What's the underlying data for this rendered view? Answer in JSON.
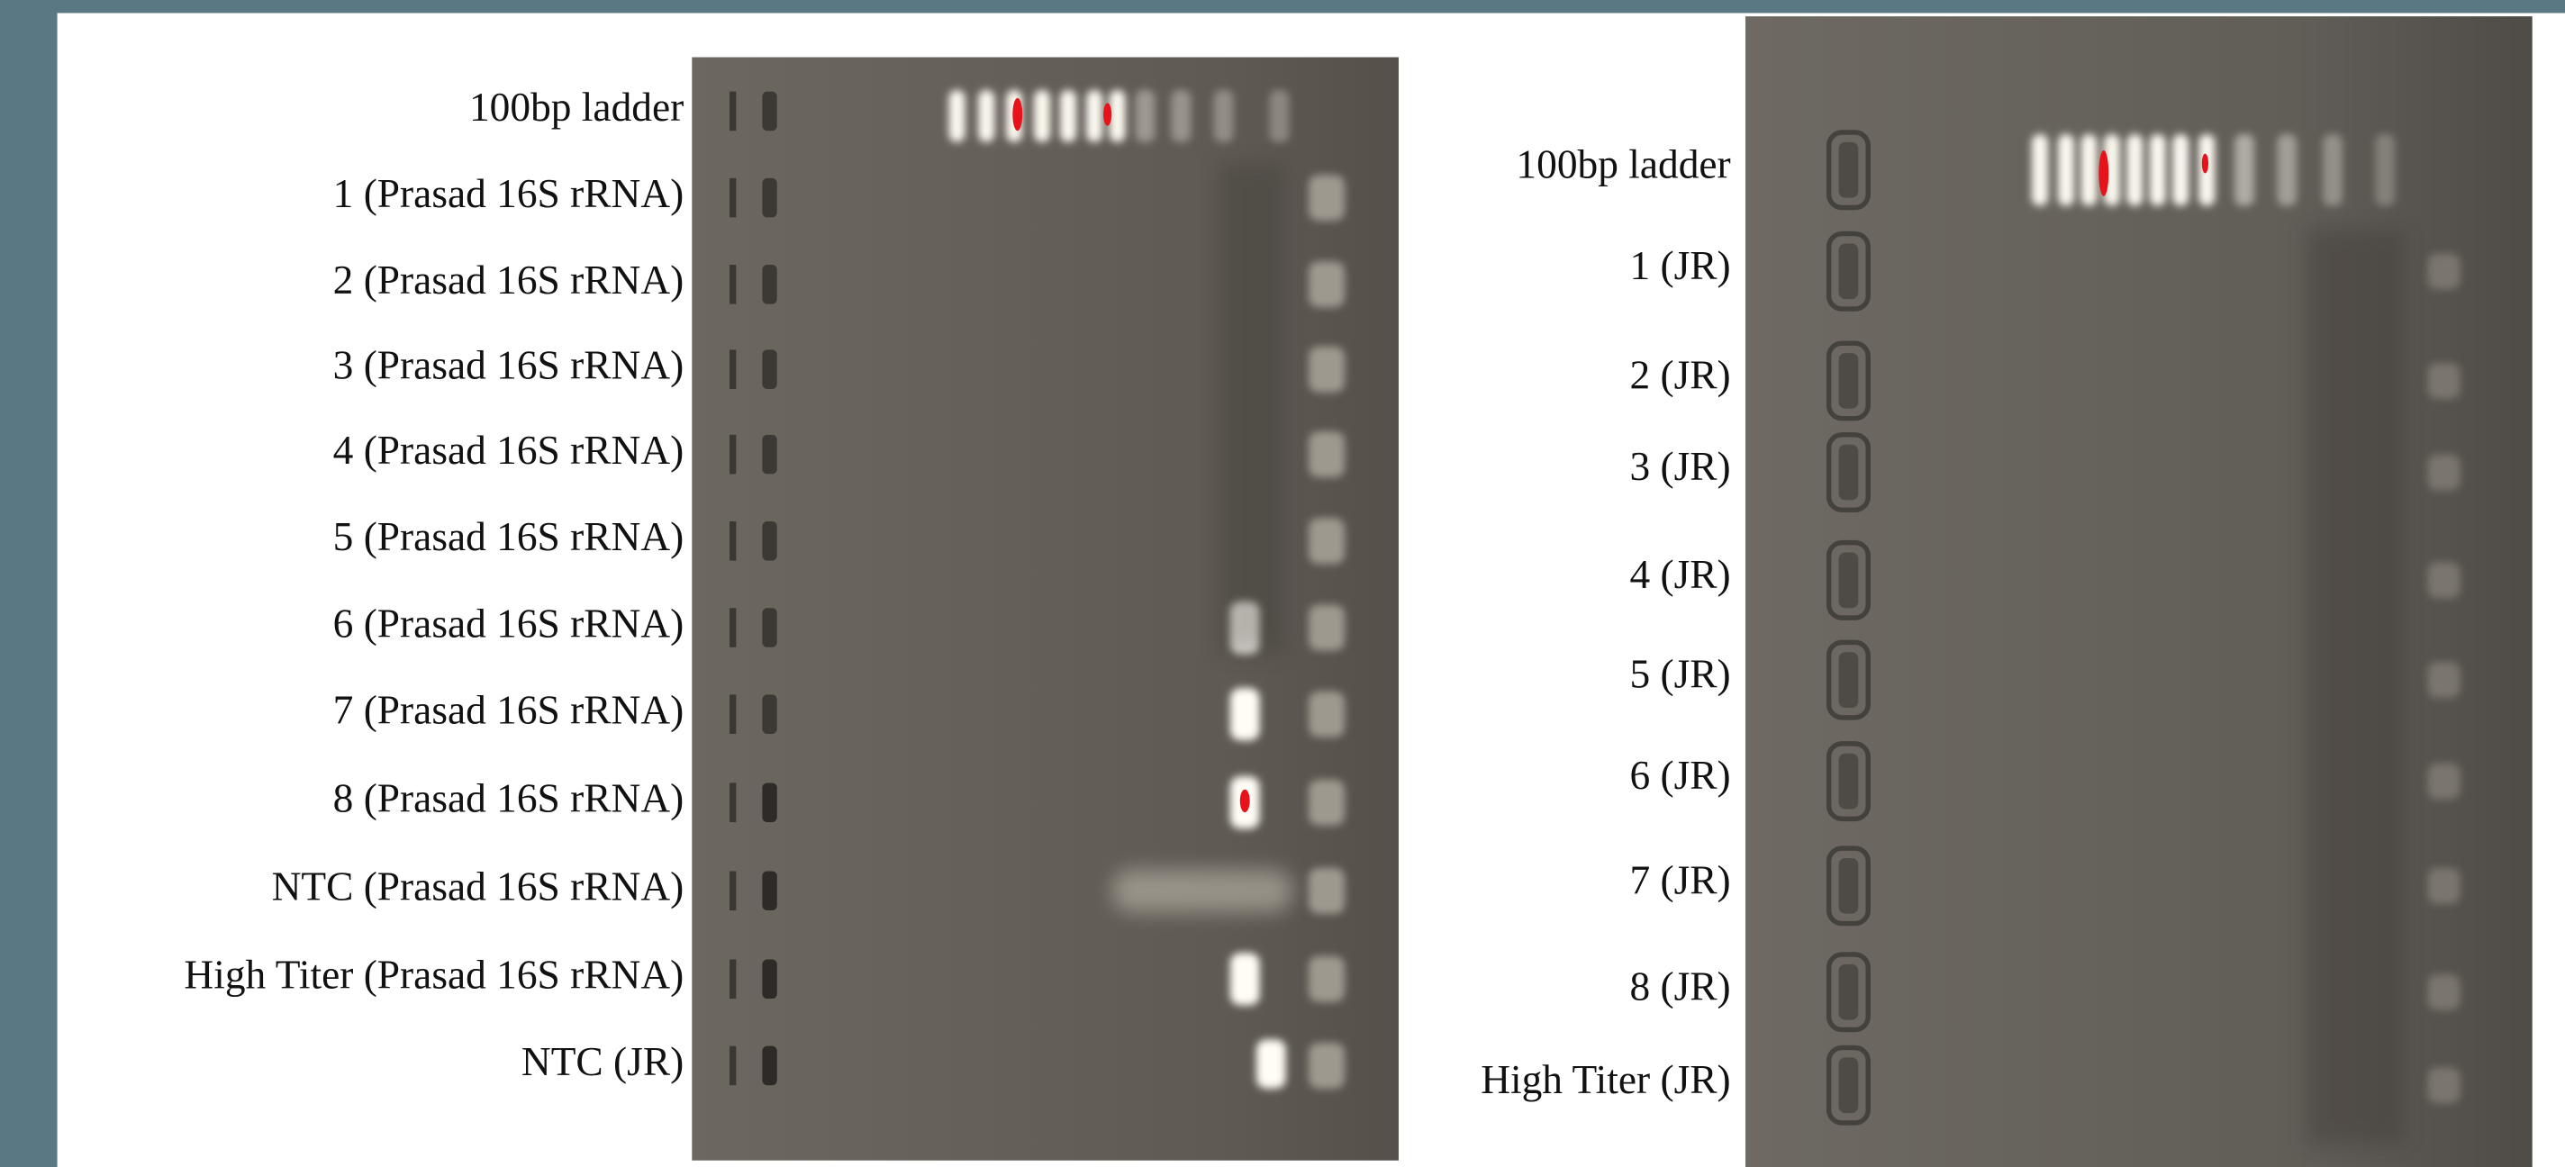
{
  "left_gel": {
    "labels": [
      "100bp ladder",
      "1 (Prasad 16S rRNA)",
      "2 (Prasad 16S rRNA)",
      "3 (Prasad 16S rRNA)",
      "4 (Prasad 16S rRNA)",
      "5 (Prasad 16S rRNA)",
      "6 (Prasad 16S rRNA)",
      "7 (Prasad 16S rRNA)",
      "8 (Prasad 16S rRNA)",
      "NTC (Prasad 16S rRNA)",
      "High Titer (Prasad 16S rRNA)",
      "NTC (JR)"
    ]
  },
  "right_gel": {
    "labels": [
      "100bp ladder",
      "1 (JR)",
      "2 (JR)",
      "3 (JR)",
      "4 (JR)",
      "5 (JR)",
      "6 (JR)",
      "7 (JR)",
      "8 (JR)",
      "High Titer (JR)"
    ]
  }
}
